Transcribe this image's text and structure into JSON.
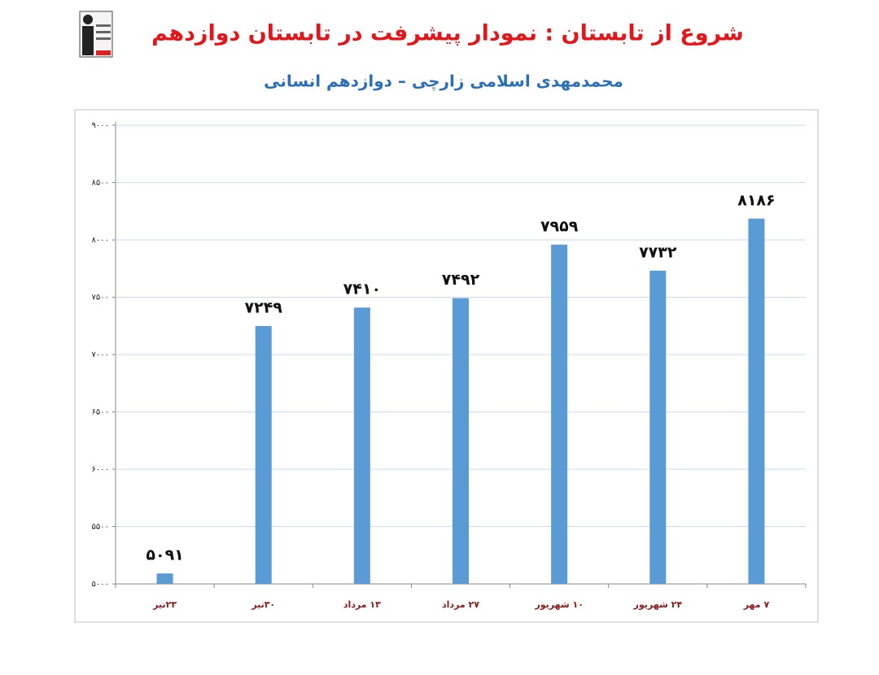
{
  "chart_data": {
    "type": "bar",
    "title": "شروع از تابستان : نمودار پیشرفت در تابستان دوازدهم",
    "subtitle": "محمدمهدی اسلامی زارچی – دوازدهم انسانی",
    "categories": [
      "۲۳تیر",
      "۳۰تیر",
      "۱۳ مرداد",
      "۲۷ مرداد",
      "۱۰ شهریور",
      "۲۴ شهریور",
      "۷ مهر"
    ],
    "values": [
      5091,
      7249,
      7410,
      7492,
      7959,
      7732,
      8186
    ],
    "value_labels": [
      "۵۰۹۱",
      "۷۲۴۹",
      "۷۴۱۰",
      "۷۴۹۲",
      "۷۹۵۹",
      "۷۷۳۲",
      "۸۱۸۶"
    ],
    "color": "#5b9bd5",
    "ylim": [
      5000,
      9000
    ],
    "yticks": [
      {
        "value": 5000,
        "label": "۵۰۰۰"
      },
      {
        "value": 5500,
        "label": "۵۵۰۰"
      },
      {
        "value": 6000,
        "label": "۶۰۰۰"
      },
      {
        "value": 6500,
        "label": "۶۵۰۰"
      },
      {
        "value": 7000,
        "label": "۷۰۰۰"
      },
      {
        "value": 7500,
        "label": "۷۵۰۰"
      },
      {
        "value": 8000,
        "label": "۸۰۰۰"
      },
      {
        "value": 8500,
        "label": "۸۵۰۰"
      },
      {
        "value": 9000,
        "label": "۹۰۰۰"
      }
    ],
    "grid": true
  }
}
